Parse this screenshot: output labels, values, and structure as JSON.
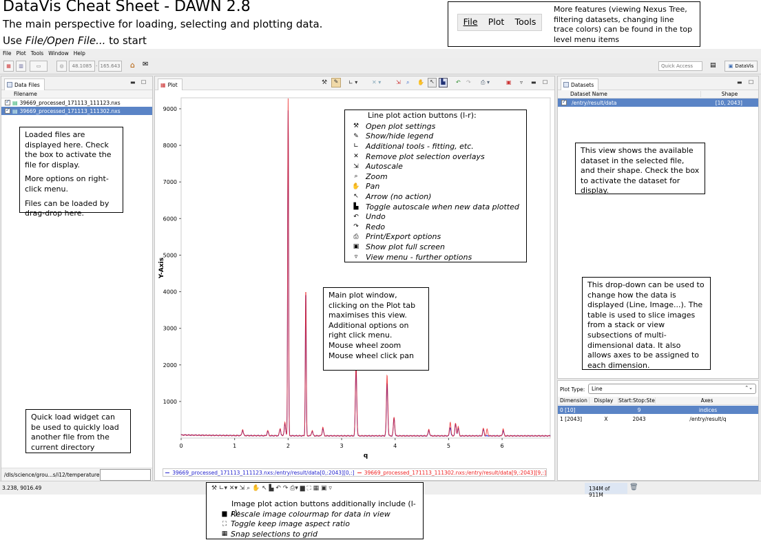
{
  "header": {
    "title": "DataVis Cheat Sheet - DAWN 2.8",
    "subtitle": "The main perspective for loading, selecting and plotting data.",
    "start_prefix": "Use ",
    "start_italic": "File/Open File...",
    "start_suffix": " to start"
  },
  "top_menu_demo": {
    "items": [
      "File",
      "Plot",
      "Tools"
    ],
    "note": "More features (viewing Nexus Tree, filtering datasets, changing line trace colors) can be found in the top level menu items"
  },
  "app_menubar": [
    "File",
    "Plot",
    "Tools",
    "Window",
    "Help"
  ],
  "toolbar": {
    "coord_x": "48.1085",
    "coord_y": "165.643",
    "quick_access_placeholder": "Quick Access",
    "perspective_label": "DataVis"
  },
  "data_files": {
    "tab": "Data Files",
    "column": "Filename",
    "files": [
      {
        "name": "39669_processed_171113_111123.nxs",
        "checked": true,
        "selected": false
      },
      {
        "name": "39669_processed_171113_111302.nxs",
        "checked": true,
        "selected": true
      }
    ],
    "path": "/dls/science/grou...s/i12/temperature",
    "callout": [
      "Loaded files are displayed here. Check the box to activate the file for display.",
      "More options on right-click menu.",
      "Files can be loaded by drag-drop here."
    ],
    "quick_load_callout": "Quick load widget can be used to quickly load another file from the current directory"
  },
  "plot": {
    "tab": "Plot",
    "ylabel": "Y-Axis",
    "xlabel": "q",
    "main_callout": [
      "Main plot window, clicking on the Plot tab maximises this view.",
      "Additional options on right click menu.",
      "Mouse wheel zoom",
      "Mouse wheel click pan"
    ],
    "legend": [
      {
        "text": "39669_processed_171113_111123.nxs:/entry/result/data[0,:2043][0,:]",
        "color": "#2222cc"
      },
      {
        "text": "39669_processed_171113_111302.nxs:/entry/result/data[9,:2043][9,:]",
        "color": "#ee2222"
      }
    ],
    "actions_title": "Line plot action buttons (l-r):",
    "actions": [
      {
        "icon": "wrench-icon",
        "glyph": "⚒",
        "label": "Open plot settings"
      },
      {
        "icon": "legend-icon",
        "glyph": "✎",
        "label": "Show/hide legend"
      },
      {
        "icon": "tools-icon",
        "glyph": "∟",
        "label": "Additional tools - fitting, etc."
      },
      {
        "icon": "overlay-icon",
        "glyph": "✕",
        "label": "Remove plot selection overlays"
      },
      {
        "icon": "autoscale-icon",
        "glyph": "⇲",
        "label": "Autoscale"
      },
      {
        "icon": "zoom-icon",
        "glyph": "⌕",
        "label": "Zoom"
      },
      {
        "icon": "pan-icon",
        "glyph": "✋",
        "label": "Pan"
      },
      {
        "icon": "arrow-icon",
        "glyph": "↖",
        "label": "Arrow (no action)"
      },
      {
        "icon": "toggle-autoscale-icon",
        "glyph": "▙",
        "label": "Toggle autoscale when new data plotted"
      },
      {
        "icon": "undo-icon",
        "glyph": "↶",
        "label": "Undo"
      },
      {
        "icon": "redo-icon",
        "glyph": "↷",
        "label": "Redo"
      },
      {
        "icon": "print-icon",
        "glyph": "⎙",
        "label": "Print/Export options"
      },
      {
        "icon": "fullscreen-icon",
        "glyph": "▣",
        "label": "Show plot full screen"
      },
      {
        "icon": "view-menu-icon",
        "glyph": "▿",
        "label": "View menu - further options"
      }
    ]
  },
  "chart_data": {
    "type": "line",
    "xlabel": "q",
    "ylabel": "Y-Axis",
    "xlim": [
      0,
      6.9
    ],
    "ylim": [
      0,
      9300
    ],
    "x_ticks": [
      "0",
      "1",
      "2",
      "3",
      "4",
      "5",
      "6"
    ],
    "y_ticks": [
      "1000",
      "2000",
      "3000",
      "4000",
      "5000",
      "6000",
      "7000",
      "8000",
      "9000"
    ],
    "series": [
      {
        "name": "39669_processed_171113_111123.nxs:/entry/result/data[0,:2043][0,:]",
        "color": "#2222cc",
        "peaks": [
          [
            1.15,
            150
          ],
          [
            1.62,
            120
          ],
          [
            1.85,
            180
          ],
          [
            1.94,
            330
          ],
          [
            2.0,
            8900
          ],
          [
            2.33,
            3950
          ],
          [
            2.45,
            130
          ],
          [
            2.65,
            200
          ],
          [
            3.27,
            1850
          ],
          [
            3.85,
            1430
          ],
          [
            3.98,
            480
          ],
          [
            4.63,
            150
          ],
          [
            5.03,
            230
          ],
          [
            5.13,
            320
          ],
          [
            5.18,
            210
          ],
          [
            5.65,
            170
          ],
          [
            6.02,
            140
          ]
        ]
      },
      {
        "name": "39669_processed_171113_111302.nxs:/entry/result/data[9,:2043][9,:]",
        "color": "#ee2222",
        "peaks": [
          [
            1.15,
            160
          ],
          [
            1.62,
            140
          ],
          [
            1.85,
            200
          ],
          [
            1.94,
            360
          ],
          [
            2.0,
            9220
          ],
          [
            2.33,
            4030
          ],
          [
            2.45,
            140
          ],
          [
            2.65,
            230
          ],
          [
            3.27,
            1980
          ],
          [
            3.85,
            1670
          ],
          [
            3.98,
            510
          ],
          [
            4.63,
            180
          ],
          [
            5.03,
            380
          ],
          [
            5.13,
            340
          ],
          [
            5.18,
            250
          ],
          [
            5.65,
            210
          ],
          [
            5.72,
            180
          ],
          [
            6.02,
            180
          ]
        ]
      }
    ]
  },
  "datasets": {
    "tab": "Datasets",
    "columns": [
      "Dataset Name",
      "Shape"
    ],
    "rows": [
      {
        "name": "/entry/result/data",
        "shape": "[10, 2043]",
        "checked": true
      }
    ],
    "callout": "This view shows the available dataset in the selected file, and their shape. Check the box to activate the dataset for display.",
    "dropdown_callout": "This drop-down can be used to change how the data is displayed (Line, Image...). The table is used to slice images from a stack or view subsections of multi-dimensional data. It also allows axes to be assigned to each dimension.",
    "plot_type_label": "Plot Type:",
    "plot_type_value": "Line",
    "slice_columns": [
      "Dimension",
      "Display",
      "Start:Stop:Ste",
      "Axes"
    ],
    "slice_rows": [
      {
        "dim": "0 [10]",
        "display": "",
        "range": "9",
        "axes": "indices"
      },
      {
        "dim": "1 [2043]",
        "display": "X",
        "range": "2043",
        "axes": "/entry/result/q"
      }
    ]
  },
  "status": {
    "coords": "3.238, 9016.49",
    "memory": "134M of 911M"
  },
  "image_actions": {
    "title": "Image plot action buttons additionally include (l-r):",
    "items": [
      {
        "icon": "rescale-colormap-icon",
        "glyph": "▆",
        "label": "Rescale image colourmap for data in view"
      },
      {
        "icon": "aspect-ratio-icon",
        "glyph": "⛶",
        "label": "Toggle keep image aspect ratio"
      },
      {
        "icon": "snap-grid-icon",
        "glyph": "▦",
        "label": "Snap selections to grid"
      }
    ]
  }
}
